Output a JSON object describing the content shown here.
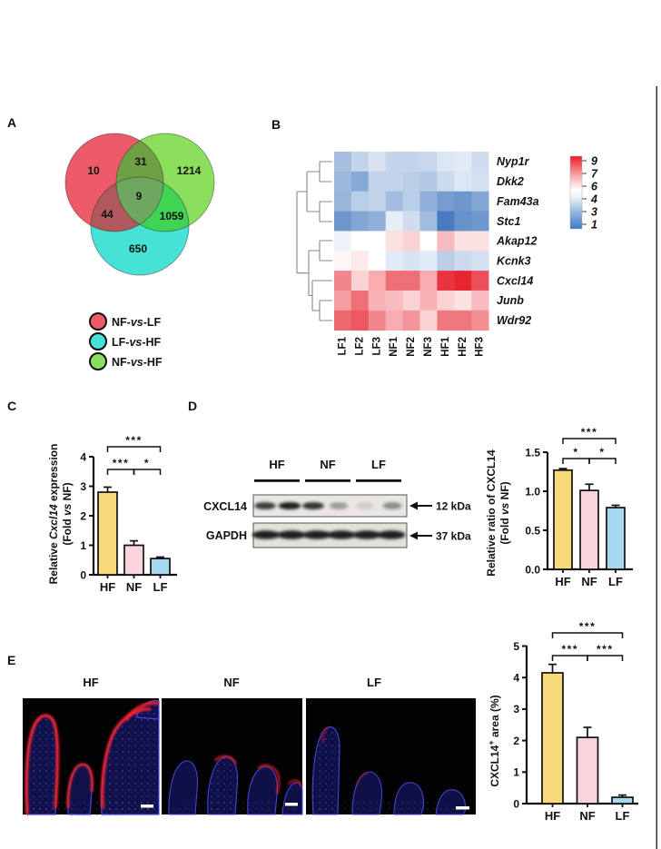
{
  "figure": {
    "panel_labels": {
      "A": "A",
      "B": "B",
      "C": "C",
      "D": "D",
      "E": "E"
    }
  },
  "panel_a": {
    "legend": [
      {
        "pre": "NF-",
        "it": "vs",
        "post": "-LF",
        "color": "#ED5A68"
      },
      {
        "pre": "LF-",
        "it": "vs",
        "post": "-HF",
        "color": "#46E2D6"
      },
      {
        "pre": "NF-",
        "it": "vs",
        "post": "-HF",
        "color": "#8BDF5C"
      }
    ]
  },
  "labels": {
    "c_y1": {
      "pre": "Relative ",
      "it": "Cxcl14",
      "post": " expression"
    },
    "c_y2": {
      "pre": "(Fold ",
      "it": "vs",
      "post": " NF)"
    },
    "d_y1": "Relative ratio of CXCL14",
    "d_y2": {
      "pre": "(Fold ",
      "it": "vs",
      "post": " NF)"
    },
    "e_y": {
      "pre": "CXCL14",
      "sup": "+",
      "post": " area (%)"
    },
    "blot": {
      "groups": [
        "HF",
        "NF",
        "LF"
      ],
      "cxcl14": "CXCL14",
      "gapdh": "GAPDH",
      "kda12": "12 kDa",
      "kda37": "37 kDa"
    },
    "micro": [
      "HF",
      "NF",
      "LF"
    ],
    "micro_label_color": "#E23128"
  },
  "panel_d_blot": {
    "band_intensity": {
      "cxcl14": [
        0.8,
        0.95,
        0.85,
        0.35,
        0.12,
        0.42
      ],
      "gapdh": [
        0.95,
        0.95,
        0.95,
        0.95,
        0.95,
        0.95
      ]
    }
  },
  "chart_data": [
    {
      "type": "venn",
      "id": "venn",
      "sets": [
        "NF-vs-LF",
        "LF-vs-HF",
        "NF-vs-HF"
      ],
      "set_colors": {
        "nf_vs_lf": "#ED5A68",
        "lf_vs_hf": "#46E2D6",
        "nf_vs_hf": "#8BDF5C"
      },
      "overlap_colors": {
        "red_green": "#6FA044",
        "red_cyan": "#B1585C",
        "green_cyan": "#3FD454",
        "center": "#6EA860"
      },
      "counts": {
        "nf_lf_only": "10",
        "nf_lf_and_nf_hf": "31",
        "nf_hf_only": "1214",
        "all_three": "9",
        "nf_lf_and_lf_hf": "44",
        "nf_hf_and_lf_hf": "1059",
        "lf_hf_only": "650"
      }
    },
    {
      "type": "heatmap",
      "id": "hm",
      "rows": [
        "Nyp1r",
        "Dkk2",
        "Fam43a",
        "Stc1",
        "Akap12",
        "Kcnk3",
        "Cxcl14",
        "Junb",
        "Wdr92"
      ],
      "cols": [
        "LF1",
        "LF2",
        "LF3",
        "NF1",
        "NF2",
        "NF3",
        "HF1",
        "HF2",
        "HF3"
      ],
      "matrix": [
        [
          3.9,
          4.6,
          5.1,
          4.6,
          4.6,
          4.7,
          5.2,
          5.3,
          4.9
        ],
        [
          3.7,
          3.2,
          4.6,
          4.6,
          4.4,
          4.2,
          4.8,
          5.2,
          5.0
        ],
        [
          3.6,
          4.4,
          4.6,
          3.8,
          4.4,
          3.4,
          2.8,
          2.6,
          3.1
        ],
        [
          2.6,
          3.1,
          3.4,
          5.4,
          4.9,
          3.8,
          1.7,
          2.4,
          2.6
        ],
        [
          5.6,
          6.0,
          6.0,
          6.4,
          6.6,
          6.0,
          6.9,
          6.4,
          6.4
        ],
        [
          6.1,
          6.3,
          6.0,
          5.3,
          5.1,
          5.3,
          4.4,
          4.8,
          5.0
        ],
        [
          7.6,
          6.6,
          7.1,
          7.9,
          7.9,
          7.1,
          8.7,
          8.9,
          8.3
        ],
        [
          7.3,
          7.9,
          7.0,
          6.9,
          6.6,
          7.0,
          6.6,
          6.4,
          6.9
        ],
        [
          8.0,
          8.2,
          7.6,
          7.1,
          7.4,
          6.6,
          7.8,
          7.8,
          7.5
        ]
      ],
      "colorbar_ticks": [
        "9",
        "7",
        "6",
        "4",
        "3",
        "1"
      ],
      "cmap": {
        "high": "#E61C29",
        "mid": "#FFFFFF",
        "low": "#2A66B5"
      },
      "value_range": [
        1,
        9
      ]
    },
    {
      "type": "bar",
      "id": "c",
      "title": "",
      "ylabel": "Relative Cxcl14 expression (Fold vs NF)",
      "categories": [
        "HF",
        "NF",
        "LF"
      ],
      "values": [
        2.8,
        1.0,
        0.55
      ],
      "errors": [
        0.17,
        0.15,
        0.05
      ],
      "ylim": [
        0,
        4
      ],
      "yticks": [
        "0",
        "1",
        "2",
        "3",
        "4"
      ],
      "colors": [
        "#F8D97B",
        "#FAD4DC",
        "#A6D9F0"
      ],
      "sig": [
        {
          "a": 0,
          "b": 1,
          "label": "***",
          "tier": 0
        },
        {
          "a": 1,
          "b": 2,
          "label": "*",
          "tier": 0
        },
        {
          "a": 0,
          "b": 2,
          "label": "***",
          "tier": 1
        }
      ]
    },
    {
      "type": "bar",
      "id": "d",
      "title": "",
      "ylabel": "Relative ratio of CXCL14 (Fold vs NF)",
      "categories": [
        "HF",
        "NF",
        "LF"
      ],
      "values": [
        1.27,
        1.01,
        0.79
      ],
      "errors": [
        0.02,
        0.08,
        0.03
      ],
      "ylim": [
        0,
        1.5
      ],
      "yticks": [
        "0.0",
        "0.5",
        "1.0",
        "1.5"
      ],
      "colors": [
        "#F8D97B",
        "#FAD4DC",
        "#A6D9F0"
      ],
      "sig": [
        {
          "a": 0,
          "b": 1,
          "label": "*",
          "tier": 0
        },
        {
          "a": 1,
          "b": 2,
          "label": "*",
          "tier": 0
        },
        {
          "a": 0,
          "b": 2,
          "label": "***",
          "tier": 1
        }
      ]
    },
    {
      "type": "bar",
      "id": "e",
      "title": "",
      "ylabel": "CXCL14+ area (%)",
      "categories": [
        "HF",
        "NF",
        "LF"
      ],
      "values": [
        4.15,
        2.1,
        0.2
      ],
      "errors": [
        0.27,
        0.32,
        0.07
      ],
      "ylim": [
        0,
        5
      ],
      "yticks": [
        "0",
        "1",
        "2",
        "3",
        "4",
        "5"
      ],
      "colors": [
        "#F8D97B",
        "#FAD4DC",
        "#A6D9F0"
      ],
      "sig": [
        {
          "a": 0,
          "b": 1,
          "label": "***",
          "tier": 0
        },
        {
          "a": 1,
          "b": 2,
          "label": "***",
          "tier": 0
        },
        {
          "a": 0,
          "b": 2,
          "label": "***",
          "tier": 1
        }
      ]
    }
  ]
}
